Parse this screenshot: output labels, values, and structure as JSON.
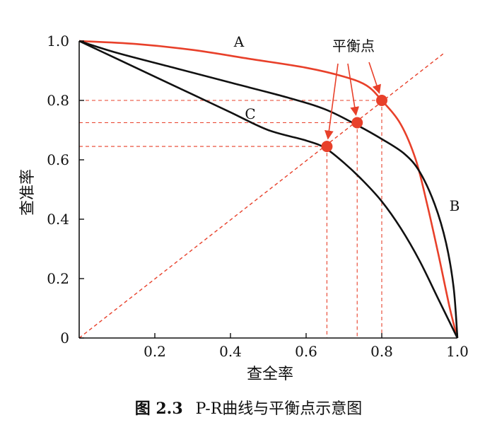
{
  "chart_data": {
    "type": "line",
    "xlabel": "查全率",
    "ylabel": "查准率",
    "xlim": [
      0,
      1.0
    ],
    "ylim": [
      0,
      1.0
    ],
    "x_ticks": [
      "0.2",
      "0.4",
      "0.6",
      "0.8",
      "1.0"
    ],
    "y_ticks": [
      "0",
      "0.2",
      "0.4",
      "0.6",
      "0.8",
      "1.0"
    ],
    "series": [
      {
        "name": "A",
        "color": "#e8402a",
        "points": [
          [
            0,
            1.0
          ],
          [
            0.15,
            0.99
          ],
          [
            0.3,
            0.97
          ],
          [
            0.45,
            0.94
          ],
          [
            0.6,
            0.91
          ],
          [
            0.7,
            0.88
          ],
          [
            0.76,
            0.85
          ],
          [
            0.8,
            0.8
          ],
          [
            0.85,
            0.72
          ],
          [
            0.89,
            0.6
          ],
          [
            0.92,
            0.45
          ],
          [
            0.95,
            0.28
          ],
          [
            0.98,
            0.1
          ],
          [
            1.0,
            0
          ]
        ]
      },
      {
        "name": "B",
        "color": "#111111",
        "points": [
          [
            0,
            1.0
          ],
          [
            0.1,
            0.96
          ],
          [
            0.25,
            0.91
          ],
          [
            0.4,
            0.86
          ],
          [
            0.55,
            0.81
          ],
          [
            0.65,
            0.77
          ],
          [
            0.73,
            0.72
          ],
          [
            0.8,
            0.67
          ],
          [
            0.86,
            0.62
          ],
          [
            0.9,
            0.56
          ],
          [
            0.94,
            0.45
          ],
          [
            0.97,
            0.32
          ],
          [
            0.99,
            0.17
          ],
          [
            1.0,
            0
          ]
        ]
      },
      {
        "name": "C",
        "color": "#111111",
        "points": [
          [
            0,
            1.0
          ],
          [
            0.1,
            0.94
          ],
          [
            0.2,
            0.88
          ],
          [
            0.3,
            0.82
          ],
          [
            0.4,
            0.76
          ],
          [
            0.5,
            0.7
          ],
          [
            0.6,
            0.665
          ],
          [
            0.65,
            0.64
          ],
          [
            0.7,
            0.59
          ],
          [
            0.75,
            0.53
          ],
          [
            0.8,
            0.46
          ],
          [
            0.85,
            0.37
          ],
          [
            0.9,
            0.26
          ],
          [
            0.95,
            0.13
          ],
          [
            1.0,
            0
          ]
        ]
      }
    ],
    "reference_line": {
      "type": "y=x",
      "color": "#e8402a",
      "style": "dashed"
    },
    "balance_points": [
      {
        "x": 0.8,
        "y": 0.8
      },
      {
        "x": 0.735,
        "y": 0.725
      },
      {
        "x": 0.655,
        "y": 0.645
      }
    ],
    "annotation": "平衡点",
    "grid": false
  },
  "caption": {
    "figure_number": "图 2.3",
    "text": "P-R曲线与平衡点示意图"
  }
}
